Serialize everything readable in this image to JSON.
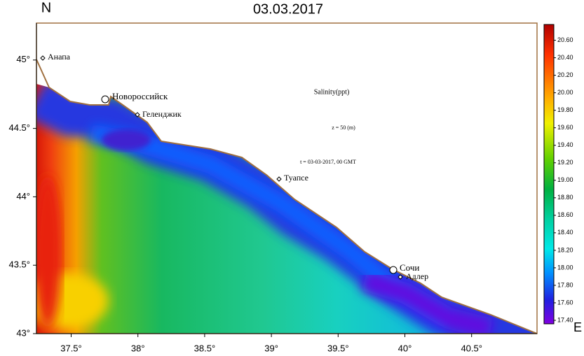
{
  "chart_data": {
    "type": "heatmap",
    "title": "03.03.2017",
    "north_label": "N",
    "east_label": "E",
    "annotations": [
      "Salinity(ppt)",
      "z = 50 (m)",
      "t = 03-03-2017, 00 GMT"
    ],
    "places": [
      "Анапа",
      "Новороссийск",
      "Геленджик",
      "Туапсе",
      "Сочи",
      "Адлер"
    ],
    "xlim": [
      37.24,
      40.99
    ],
    "xticks": [
      {
        "value": 37.5,
        "label": "37.5°"
      },
      {
        "value": 38,
        "label": "38°"
      },
      {
        "value": 38.5,
        "label": "38.5°"
      },
      {
        "value": 39,
        "label": "39°"
      },
      {
        "value": 39.5,
        "label": "39.5°"
      },
      {
        "value": 40,
        "label": "40°"
      },
      {
        "value": 40.5,
        "label": "40.5°"
      }
    ],
    "ylim": [
      43,
      45.27
    ],
    "yticks": [
      {
        "value": 43,
        "label": "43°"
      },
      {
        "value": 43.5,
        "label": "43.5°"
      },
      {
        "value": 44,
        "label": "44°"
      },
      {
        "value": 44.5,
        "label": "44.5°"
      },
      {
        "value": 45,
        "label": "45°"
      }
    ],
    "colorbar": {
      "lim": [
        17.36,
        20.78
      ],
      "ticks": [
        {
          "value": 17.4,
          "label": "17.40"
        },
        {
          "value": 17.6,
          "label": "17.60"
        },
        {
          "value": 17.8,
          "label": "17.80"
        },
        {
          "value": 18,
          "label": "18.00"
        },
        {
          "value": 18.2,
          "label": "18.20"
        },
        {
          "value": 18.4,
          "label": "18.40"
        },
        {
          "value": 18.6,
          "label": "18.60"
        },
        {
          "value": 18.8,
          "label": "18.80"
        },
        {
          "value": 19,
          "label": "19.00"
        },
        {
          "value": 19.2,
          "label": "19.20"
        },
        {
          "value": 19.4,
          "label": "19.40"
        },
        {
          "value": 19.6,
          "label": "19.60"
        },
        {
          "value": 19.8,
          "label": "19.80"
        },
        {
          "value": 20,
          "label": "20.00"
        },
        {
          "value": 20.2,
          "label": "20.20"
        },
        {
          "value": 20.4,
          "label": "20.40"
        },
        {
          "value": 20.6,
          "label": "20.60"
        }
      ]
    }
  }
}
